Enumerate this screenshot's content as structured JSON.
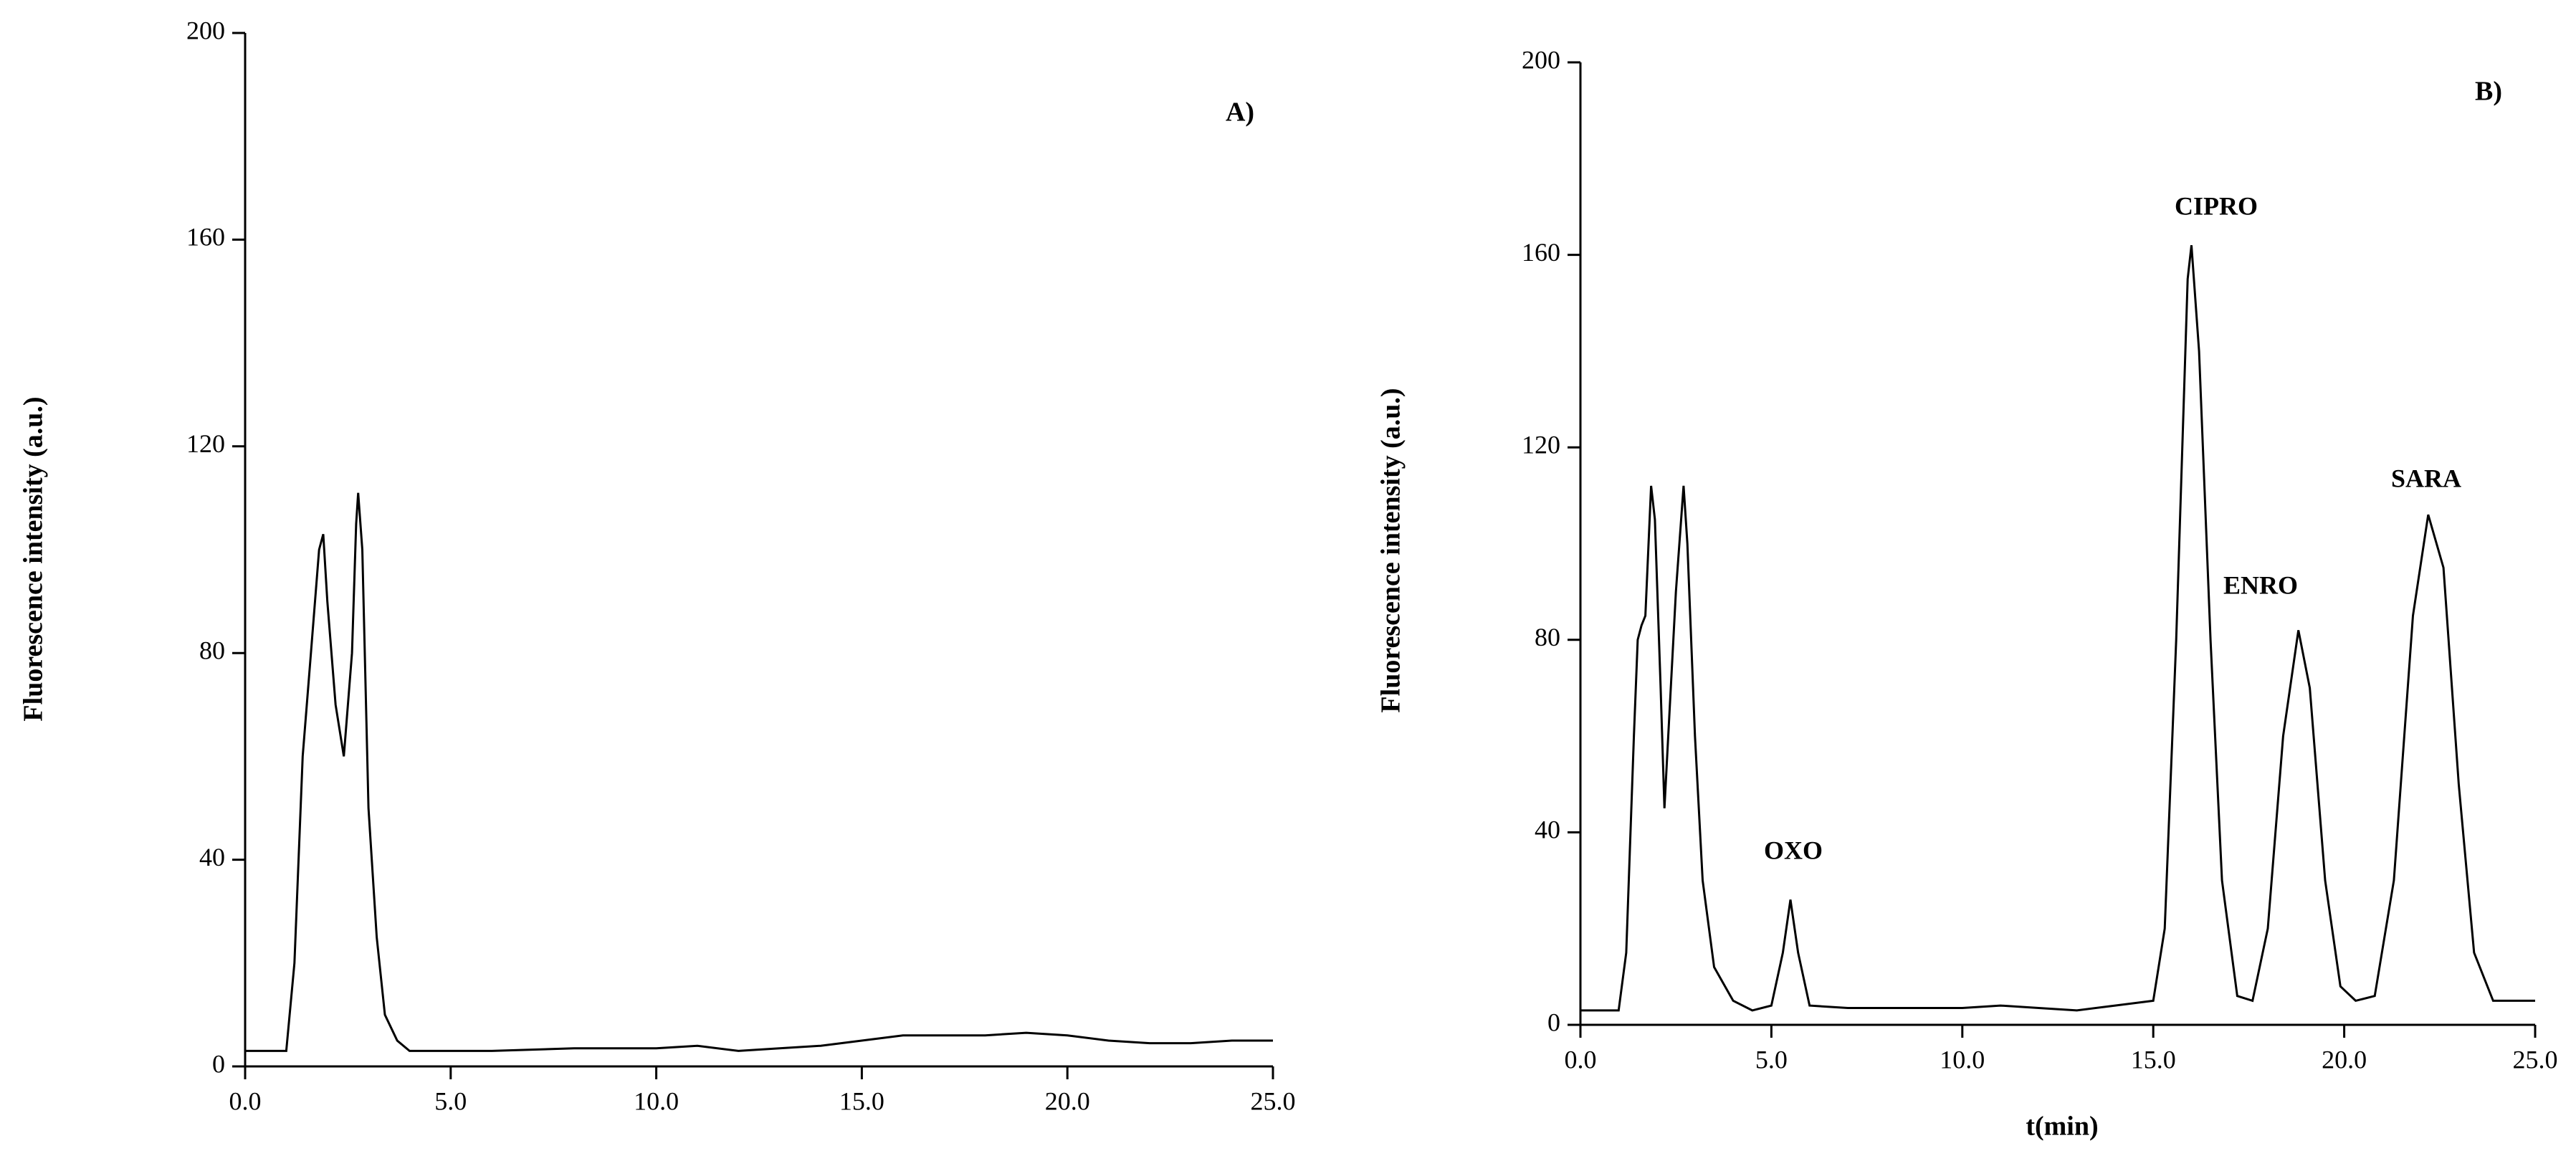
{
  "chart_data": [
    {
      "type": "line",
      "panel_label": "A)",
      "y_label": "Fluorescence intensity (a.u.)",
      "color": "#000000",
      "xlim": [
        0,
        25
      ],
      "ylim": [
        0,
        200
      ],
      "xticks": [
        {
          "value": 0,
          "label": "0.0"
        },
        {
          "value": 5,
          "label": "5.0"
        },
        {
          "value": 10,
          "label": "10.0"
        },
        {
          "value": 15,
          "label": "15.0"
        },
        {
          "value": 20,
          "label": "20.0"
        },
        {
          "value": 25,
          "label": "25.0"
        }
      ],
      "yticks": [
        0,
        40,
        80,
        120,
        160,
        200
      ],
      "x": [
        0,
        1,
        1.2,
        1.4,
        1.6,
        1.8,
        1.9,
        2.0,
        2.2,
        2.4,
        2.6,
        2.7,
        2.75,
        2.85,
        3.0,
        3.2,
        3.4,
        3.7,
        4,
        6,
        8,
        10,
        11,
        12,
        13,
        14,
        15,
        16,
        18,
        19,
        20,
        21,
        22,
        23,
        24,
        25
      ],
      "values": [
        3,
        3,
        20,
        60,
        80,
        100,
        103,
        90,
        70,
        60,
        80,
        105,
        111,
        100,
        50,
        25,
        10,
        5,
        3,
        3,
        3.5,
        3.5,
        4,
        3,
        3.5,
        4,
        5,
        6,
        6,
        6.5,
        6,
        5,
        4.5,
        4.5,
        5,
        5
      ]
    },
    {
      "type": "line",
      "panel_label": "B)",
      "y_label": "Fluorescence intensity (a.u.)",
      "x_label": "t(min)",
      "color": "#000000",
      "xlim": [
        0,
        25
      ],
      "ylim": [
        0,
        200
      ],
      "xticks": [
        {
          "value": 0,
          "label": "0.0"
        },
        {
          "value": 5,
          "label": "5.0"
        },
        {
          "value": 10,
          "label": "10.0"
        },
        {
          "value": 15,
          "label": "15.0"
        },
        {
          "value": 20,
          "label": "20.0"
        },
        {
          "value": 25,
          "label": "25.0"
        }
      ],
      "yticks": [
        0,
        40,
        80,
        120,
        160,
        200
      ],
      "annotations": [
        "OXO",
        "CIPRO",
        "ENRO",
        "SARA"
      ],
      "x": [
        0,
        1,
        1.2,
        1.4,
        1.5,
        1.6,
        1.7,
        1.85,
        1.95,
        2.1,
        2.2,
        2.3,
        2.5,
        2.7,
        2.8,
        3.0,
        3.2,
        3.5,
        4,
        4.5,
        5.0,
        5.3,
        5.5,
        5.7,
        6,
        7,
        10,
        11,
        12,
        13,
        14,
        15,
        15.3,
        15.6,
        15.9,
        16.0,
        16.2,
        16.5,
        16.8,
        17.2,
        17.6,
        18.0,
        18.4,
        18.8,
        19.1,
        19.5,
        19.9,
        20.3,
        20.8,
        21.3,
        21.8,
        22.2,
        22.6,
        23.0,
        23.4,
        23.9,
        25
      ],
      "values": [
        3,
        3,
        15,
        60,
        80,
        83,
        85,
        112,
        105,
        70,
        45,
        60,
        90,
        112,
        100,
        60,
        30,
        12,
        5,
        3,
        4,
        15,
        26,
        15,
        4,
        3.5,
        3.5,
        4,
        3.5,
        3,
        4,
        5,
        20,
        80,
        155,
        162,
        140,
        80,
        30,
        6,
        5,
        20,
        60,
        82,
        70,
        30,
        8,
        5,
        6,
        30,
        85,
        106,
        95,
        50,
        15,
        5,
        5
      ]
    }
  ]
}
